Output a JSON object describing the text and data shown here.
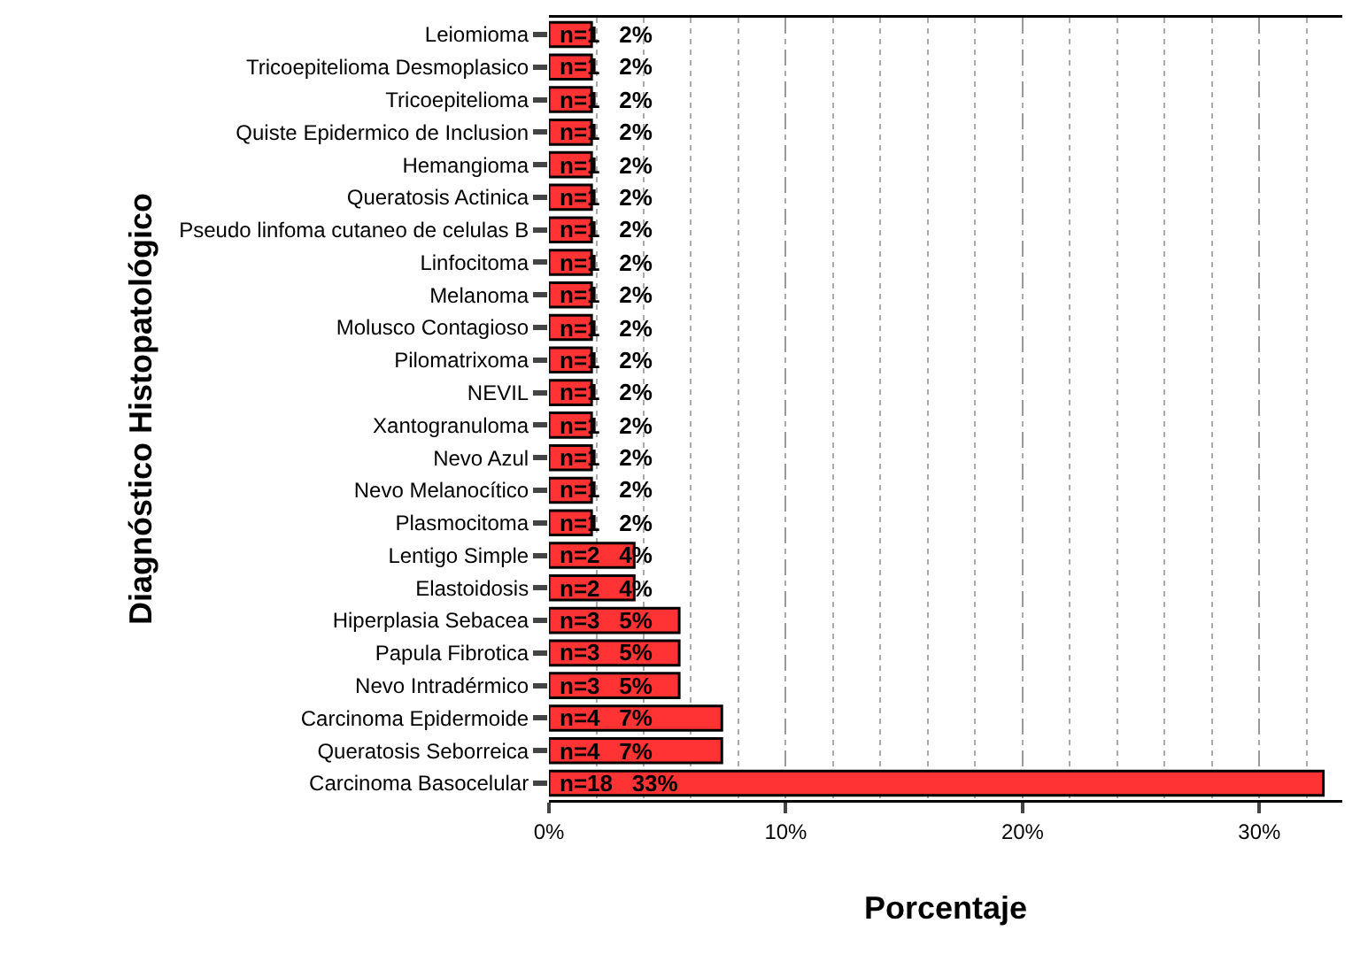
{
  "chart_data": {
    "type": "bar",
    "orientation": "horizontal",
    "xlabel": "Porcentaje",
    "ylabel": "Diagnóstico Histopatológico",
    "categories": [
      "Leiomioma",
      "Tricoepitelioma Desmoplasico",
      "Tricoepitelioma",
      "Quiste Epidermico de Inclusion",
      "Hemangioma",
      "Queratosis Actinica",
      "Pseudo linfoma cutaneo de celulas B",
      "Linfocitoma",
      "Melanoma",
      "Molusco Contagioso",
      "Pilomatrixoma",
      "NEVIL",
      "Xantogranuloma",
      "Nevo Azul",
      "Nevo Melanocítico",
      "Plasmocitoma",
      "Lentigo Simple",
      "Elastoidosis",
      "Hiperplasia Sebacea",
      "Papula Fibrotica",
      "Nevo Intradérmico",
      "Carcinoma Epidermoide",
      "Queratosis Seborreica",
      "Carcinoma Basocelular"
    ],
    "values": [
      1.8,
      1.8,
      1.8,
      1.8,
      1.8,
      1.8,
      1.8,
      1.8,
      1.8,
      1.8,
      1.8,
      1.8,
      1.8,
      1.8,
      1.8,
      1.8,
      3.6,
      3.6,
      5.5,
      5.5,
      5.5,
      7.3,
      7.3,
      32.7
    ],
    "value_labels": [
      "n=1   2%",
      "n=1   2%",
      "n=1   2%",
      "n=1   2%",
      "n=1   2%",
      "n=1   2%",
      "n=1   2%",
      "n=1   2%",
      "n=1   2%",
      "n=1   2%",
      "n=1   2%",
      "n=1   2%",
      "n=1   2%",
      "n=1   2%",
      "n=1   2%",
      "n=1   2%",
      "n=2   4%",
      "n=2   4%",
      "n=3   5%",
      "n=3   5%",
      "n=3   5%",
      "n=4   7%",
      "n=4   7%",
      "n=18   33%"
    ],
    "color": "#ff3333",
    "xlim": [
      0,
      33.5
    ],
    "xticks": [
      {
        "value": 0,
        "label": "0%"
      },
      {
        "value": 10,
        "label": "10%"
      },
      {
        "value": 20,
        "label": "20%"
      },
      {
        "value": 30,
        "label": "30%"
      }
    ],
    "grid": "x",
    "legend": false
  }
}
